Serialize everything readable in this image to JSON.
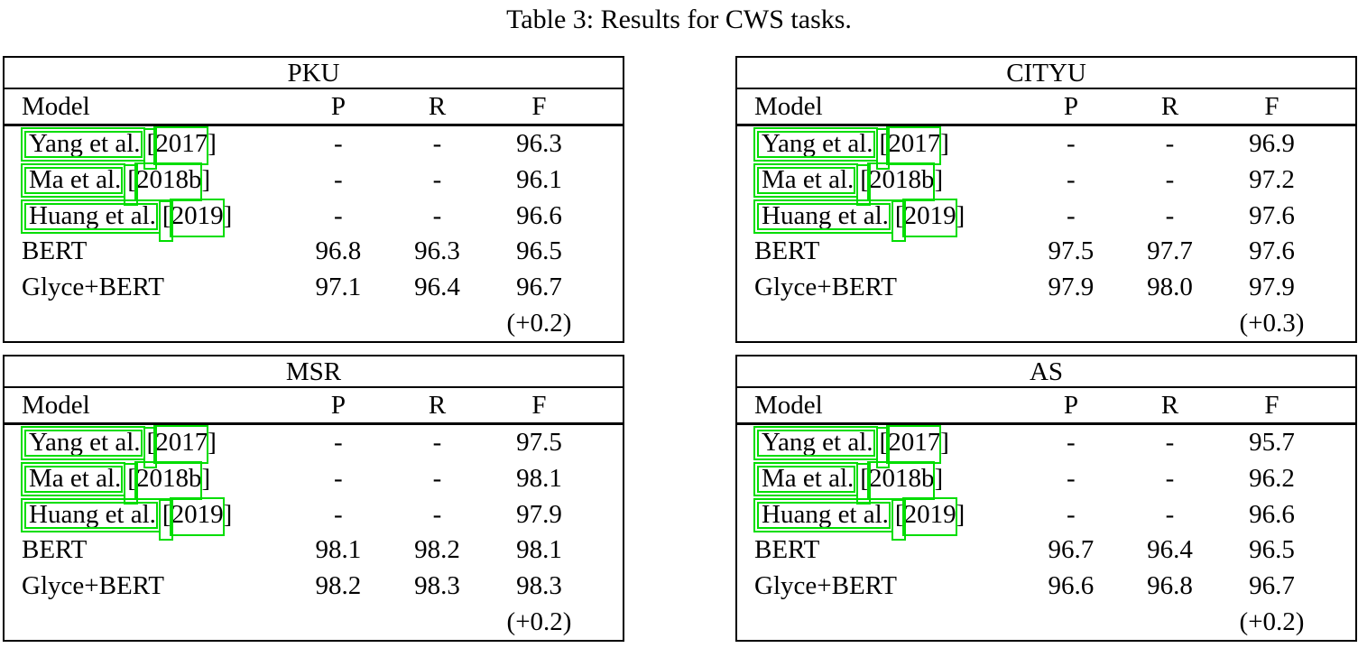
{
  "caption": "Table 3: Results for CWS tasks.",
  "columns": [
    "Model",
    "P",
    "R",
    "F"
  ],
  "link_box_color": "#00dd00",
  "tables": [
    {
      "title": "PKU",
      "rows": [
        {
          "cited": true,
          "model": "Yang et al.",
          "bracket_open": "[",
          "year": "2017",
          "bracket_close": "]",
          "p": "-",
          "r": "-",
          "f": "96.3"
        },
        {
          "cited": true,
          "model": "Ma et al.",
          "bracket_open": "[",
          "year": "2018b",
          "bracket_close": "]",
          "p": "-",
          "r": "-",
          "f": "96.1"
        },
        {
          "cited": true,
          "model": "Huang et al.",
          "bracket_open": "[",
          "year": "2019",
          "bracket_close": "]",
          "p": "-",
          "r": "-",
          "f": "96.6"
        },
        {
          "cited": false,
          "model": "BERT",
          "p": "96.8",
          "r": "96.3",
          "f": "96.5"
        },
        {
          "cited": false,
          "model": "Glyce+BERT",
          "p": "97.1",
          "r": "96.4",
          "f": "96.7"
        },
        {
          "cited": false,
          "model": "",
          "p": "",
          "r": "",
          "gain": "(+0.2)"
        }
      ]
    },
    {
      "title": "CITYU",
      "rows": [
        {
          "cited": true,
          "model": "Yang et al.",
          "bracket_open": "[",
          "year": "2017",
          "bracket_close": "]",
          "p": "-",
          "r": "-",
          "f": "96.9"
        },
        {
          "cited": true,
          "model": "Ma et al.",
          "bracket_open": "[",
          "year": "2018b",
          "bracket_close": "]",
          "p": "-",
          "r": "-",
          "f": "97.2"
        },
        {
          "cited": true,
          "model": "Huang et al.",
          "bracket_open": "[",
          "year": "2019",
          "bracket_close": "]",
          "p": "-",
          "r": "-",
          "f": "97.6"
        },
        {
          "cited": false,
          "model": "BERT",
          "p": "97.5",
          "r": "97.7",
          "f": "97.6"
        },
        {
          "cited": false,
          "model": "Glyce+BERT",
          "p": "97.9",
          "r": "98.0",
          "f": "97.9"
        },
        {
          "cited": false,
          "model": "",
          "p": "",
          "r": "",
          "gain": "(+0.3)"
        }
      ]
    },
    {
      "title": "MSR",
      "rows": [
        {
          "cited": true,
          "model": "Yang et al.",
          "bracket_open": "[",
          "year": "2017",
          "bracket_close": "]",
          "p": "-",
          "r": "-",
          "f": "97.5"
        },
        {
          "cited": true,
          "model": "Ma et al.",
          "bracket_open": "[",
          "year": "2018b",
          "bracket_close": "]",
          "p": "-",
          "r": "-",
          "f": "98.1"
        },
        {
          "cited": true,
          "model": "Huang et al.",
          "bracket_open": "[",
          "year": "2019",
          "bracket_close": "]",
          "p": "-",
          "r": "-",
          "f": "97.9"
        },
        {
          "cited": false,
          "model": "BERT",
          "p": "98.1",
          "r": "98.2",
          "f": "98.1"
        },
        {
          "cited": false,
          "model": "Glyce+BERT",
          "p": "98.2",
          "r": "98.3",
          "f": "98.3"
        },
        {
          "cited": false,
          "model": "",
          "p": "",
          "r": "",
          "gain": "(+0.2)"
        }
      ]
    },
    {
      "title": "AS",
      "rows": [
        {
          "cited": true,
          "model": "Yang et al.",
          "bracket_open": "[",
          "year": "2017",
          "bracket_close": "]",
          "p": "-",
          "r": "-",
          "f": "95.7"
        },
        {
          "cited": true,
          "model": "Ma et al.",
          "bracket_open": "[",
          "year": "2018b",
          "bracket_close": "]",
          "p": "-",
          "r": "-",
          "f": "96.2"
        },
        {
          "cited": true,
          "model": "Huang et al.",
          "bracket_open": "[",
          "year": "2019",
          "bracket_close": "]",
          "p": "-",
          "r": "-",
          "f": "96.6"
        },
        {
          "cited": false,
          "model": "BERT",
          "p": "96.7",
          "r": "96.4",
          "f": "96.5"
        },
        {
          "cited": false,
          "model": "Glyce+BERT",
          "p": "96.6",
          "r": "96.8",
          "f": "96.7"
        },
        {
          "cited": false,
          "model": "",
          "p": "",
          "r": "",
          "gain": "(+0.2)"
        }
      ]
    }
  ]
}
